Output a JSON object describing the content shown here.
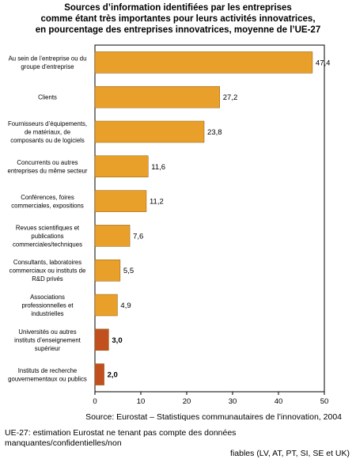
{
  "title_lines": [
    "Sources d’information identifiées par les entreprises",
    "comme étant très importantes pour leurs activités innovatrices,",
    "en pourcentage des entreprises innovatrices, moyenne de l’UE-27"
  ],
  "source": "Source: Eurostat – Statistiques communautaires de l’innovation, 2004",
  "footnote": {
    "line1": "UE-27: estimation Eurostat ne tenant pas compte des données manquantes/confidentielles/non",
    "line2": "fiables (LV, AT, PT, SI, SE et UK)"
  },
  "colors": {
    "bar": "#E9A02B",
    "bar_highlight": "#C24F1E",
    "bar_edge": "#8B5A10",
    "frame": "#000000"
  },
  "chart_data": {
    "type": "bar",
    "orientation": "horizontal",
    "categories": [
      [
        "Au sein de l’entreprise ou du",
        "groupe d’entreprise"
      ],
      [
        "Clients"
      ],
      [
        "Fournisseurs d’équipements,",
        "de matériaux, de",
        "composants ou de logiciels"
      ],
      [
        "Concurrents ou autres",
        "entreprises du même secteur"
      ],
      [
        "Conférences, foires",
        "commerciales, expositions"
      ],
      [
        "Revues scientifiques et",
        "publications",
        "commerciales/techniques"
      ],
      [
        "Consultants, laboratoires",
        "commerciaux ou instituts de",
        "R&D privés"
      ],
      [
        "Associations",
        "professionnelles et",
        "industrielles"
      ],
      [
        "Universités ou autres",
        "instituts d’enseignement",
        "supérieur"
      ],
      [
        "Instituts de recherche",
        "gouvernementaux ou publics"
      ]
    ],
    "values": [
      47.4,
      27.2,
      23.8,
      11.6,
      11.2,
      7.6,
      5.5,
      4.9,
      3.0,
      2.0
    ],
    "value_labels": [
      "47,4",
      "27,2",
      "23,8",
      "11,6",
      "11,2",
      "7,6",
      "5,5",
      "4,9",
      "3,0",
      "2,0"
    ],
    "highlighted": [
      false,
      false,
      false,
      false,
      false,
      false,
      false,
      false,
      true,
      true
    ],
    "xticks": [
      "0",
      "10",
      "20",
      "30",
      "40",
      "50"
    ],
    "xtick_values": [
      0,
      10,
      20,
      30,
      40,
      50
    ],
    "xlim": [
      0,
      50
    ],
    "grid": false
  }
}
